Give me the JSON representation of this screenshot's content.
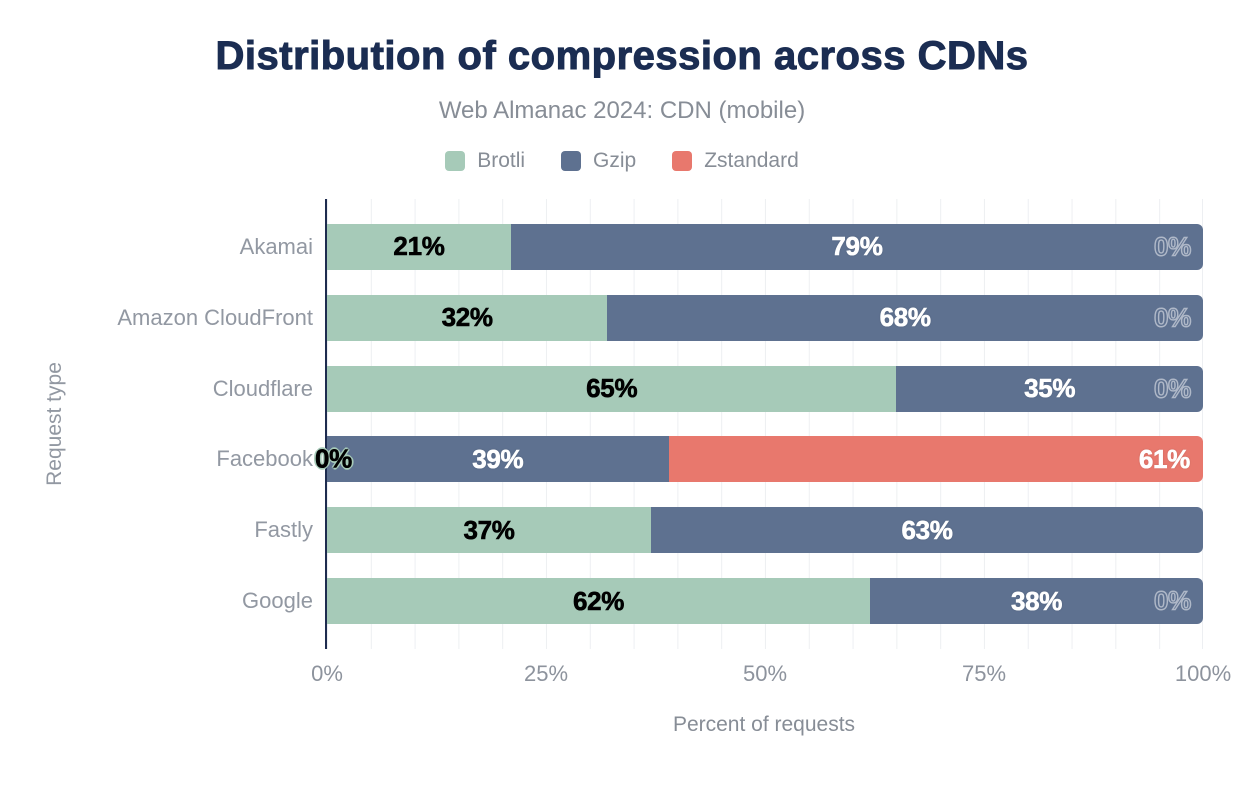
{
  "title": "Distribution of compression across CDNs",
  "subtitle": "Web Almanac 2024: CDN (mobile)",
  "colors": {
    "title_text": "#1b2d52",
    "axis_text": "#9298a2",
    "axis_line": "#1e2c4f",
    "grid_line": "#edeff2",
    "brotli": "#a6cab8",
    "gzip": "#5e7190",
    "zstandard": "#e8786d"
  },
  "legend": {
    "items": [
      {
        "label": "Brotli",
        "color": "#a6cab8"
      },
      {
        "label": "Gzip",
        "color": "#5e7190"
      },
      {
        "label": "Zstandard",
        "color": "#e8786d"
      }
    ]
  },
  "x_axis": {
    "title": "Percent of requests",
    "ticks": [
      "0%",
      "25%",
      "50%",
      "75%",
      "100%"
    ],
    "tick_values": [
      0,
      25,
      50,
      75,
      100
    ]
  },
  "y_axis": {
    "title": "Request type"
  },
  "chart_data": {
    "type": "bar",
    "stacked": true,
    "orientation": "horizontal",
    "title": "Distribution of compression across CDNs",
    "subtitle": "Web Almanac 2024: CDN (mobile)",
    "xlabel": "Percent of requests",
    "ylabel": "Request type",
    "xlim": [
      0,
      100
    ],
    "grid": "vertical gridlines every 5%",
    "legend_position": "top",
    "categories": [
      "Akamai",
      "Amazon CloudFront",
      "Cloudflare",
      "Facebook",
      "Fastly",
      "Google"
    ],
    "series": [
      {
        "name": "Brotli",
        "color": "#a6cab8",
        "values": [
          21,
          32,
          65,
          0,
          37,
          62
        ],
        "labels": [
          "21%",
          "32%",
          "65%",
          "0%",
          "37%",
          "62%"
        ]
      },
      {
        "name": "Gzip",
        "color": "#5e7190",
        "values": [
          79,
          68,
          35,
          39,
          63,
          38
        ],
        "labels": [
          "79%",
          "68%",
          "35%",
          "39%",
          "63%",
          "38%"
        ]
      },
      {
        "name": "Zstandard",
        "color": "#e8786d",
        "values": [
          0,
          0,
          0,
          61,
          0,
          0
        ],
        "labels": [
          "0%",
          "0%",
          "0%",
          "61%",
          null,
          "0%"
        ]
      }
    ]
  }
}
